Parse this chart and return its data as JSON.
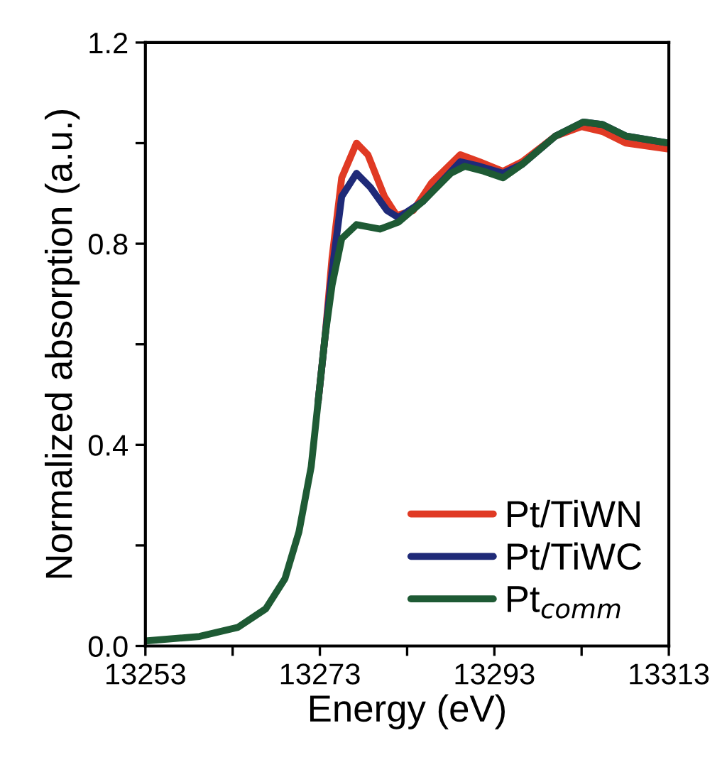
{
  "chart_data": {
    "type": "line",
    "xlabel": "Energy (eV)",
    "ylabel": "Normalized absorption (a.u.)",
    "xlim": [
      13253,
      13313
    ],
    "ylim": [
      0,
      1.2
    ],
    "xticks": [
      13253,
      {
        "value": 13263,
        "label": null
      },
      13273,
      {
        "value": 13283,
        "label": null
      },
      13293,
      {
        "value": 13303,
        "label": null
      },
      13313
    ],
    "yticks": [
      {
        "value": 0,
        "label": "0.0"
      },
      {
        "value": 0.2,
        "label": null
      },
      0.4,
      {
        "value": 0.6,
        "label": null
      },
      0.8,
      {
        "value": 1.0,
        "label": null
      },
      1.2
    ],
    "grid": false,
    "legend": "bottom right",
    "marker": "none",
    "line_style": "solid",
    "series": [
      {
        "name": "Pt/TiWN",
        "color": "#e03a24",
        "x": [
          13272.8,
          13273.6,
          13274.4,
          13275.5,
          13277.2,
          13278.5,
          13280.4,
          13281.8,
          13283.7,
          13285.8,
          13289.1,
          13291.3,
          13294.0,
          13296.2,
          13300.0,
          13303.0,
          13305.4,
          13308.1,
          13313
        ],
        "values": [
          0.486,
          0.616,
          0.773,
          0.931,
          1.0,
          0.977,
          0.894,
          0.856,
          0.866,
          0.921,
          0.977,
          0.963,
          0.944,
          0.963,
          1.014,
          1.033,
          1.023,
          1.0,
          0.988
        ]
      },
      {
        "name": "Pt/TiWC",
        "color": "#1f2a78",
        "x": [
          13272.8,
          13273.6,
          13274.4,
          13275.5,
          13277.2,
          13278.8,
          13280.7,
          13282.0,
          13284.8,
          13289.1,
          13291.3,
          13294.0,
          13296.2,
          13300.0,
          13303.2,
          13305.4,
          13308.1,
          13313
        ],
        "values": [
          0.486,
          0.616,
          0.745,
          0.894,
          0.94,
          0.912,
          0.866,
          0.852,
          0.884,
          0.963,
          0.954,
          0.94,
          0.958,
          1.014,
          1.042,
          1.037,
          1.014,
          1.0
        ]
      },
      {
        "name": "Pt$_{comm}$",
        "color": "#1e5a34",
        "x": [
          13253,
          13259.2,
          13263.6,
          13266.8,
          13269.0,
          13270.6,
          13272.0,
          13272.8,
          13273.6,
          13274.4,
          13275.5,
          13277.2,
          13279.9,
          13282.0,
          13284.8,
          13288.0,
          13289.6,
          13291.8,
          13294.0,
          13296.2,
          13300.0,
          13303.2,
          13305.4,
          13308.1,
          13313
        ],
        "values": [
          0.01,
          0.019,
          0.037,
          0.074,
          0.134,
          0.227,
          0.356,
          0.486,
          0.616,
          0.718,
          0.81,
          0.838,
          0.829,
          0.843,
          0.884,
          0.94,
          0.954,
          0.944,
          0.931,
          0.958,
          1.014,
          1.042,
          1.037,
          1.014,
          1.0
        ]
      }
    ]
  }
}
